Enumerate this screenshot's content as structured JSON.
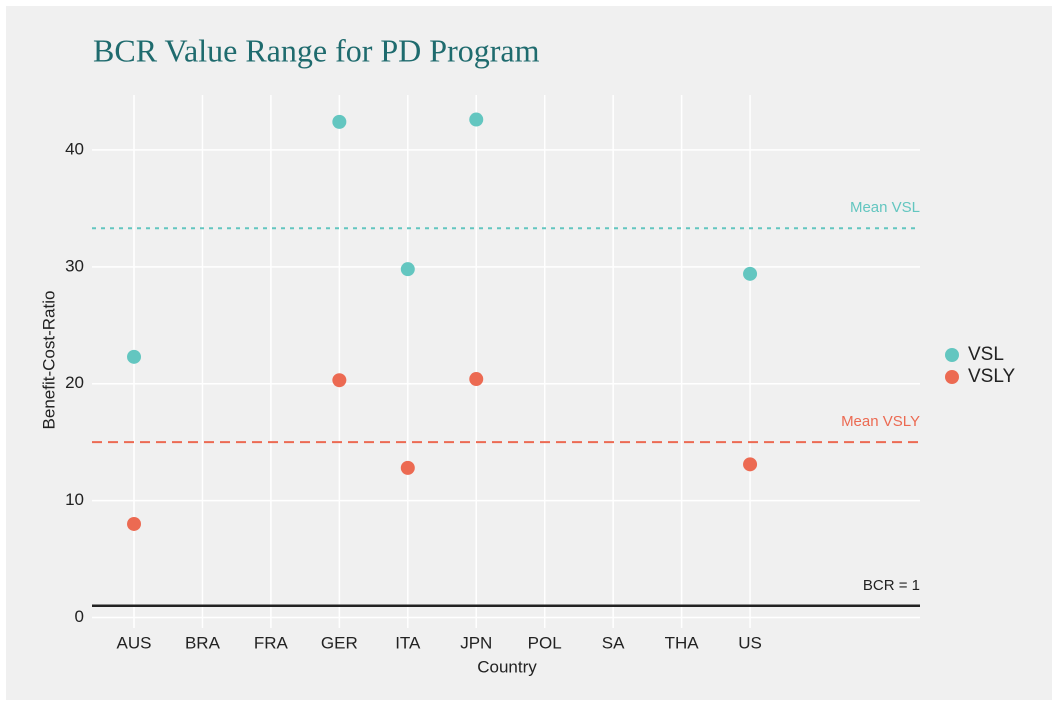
{
  "chart_data": {
    "type": "scatter",
    "title": "BCR Value Range for PD Program",
    "x_label": "Country",
    "y_label": "Benefit-Cost-Ratio",
    "categories": [
      "AUS",
      "BRA",
      "FRA",
      "GER",
      "ITA",
      "JPN",
      "POL",
      "SA",
      "THA",
      "US"
    ],
    "series": [
      {
        "name": "VSL",
        "color": "#63c6c0",
        "values": [
          22.3,
          null,
          null,
          42.4,
          29.8,
          42.6,
          null,
          null,
          null,
          29.4
        ]
      },
      {
        "name": "VSLY",
        "color": "#ec6a52",
        "values": [
          8.0,
          null,
          null,
          20.3,
          12.8,
          20.4,
          null,
          null,
          null,
          13.1
        ]
      }
    ],
    "reference_lines": [
      {
        "label": "Mean VSL",
        "value": 33.3,
        "color": "#63c6c0",
        "style": "dotted"
      },
      {
        "label": "Mean VSLY",
        "value": 15.0,
        "color": "#ec6a52",
        "style": "dashed"
      },
      {
        "label": "BCR = 1",
        "value": 1,
        "color": "#222222",
        "style": "solid"
      }
    ],
    "ylim": [
      -0.9,
      44.7
    ],
    "yticks": [
      0,
      10,
      20,
      30,
      40
    ],
    "grid": true,
    "legend": "right"
  }
}
